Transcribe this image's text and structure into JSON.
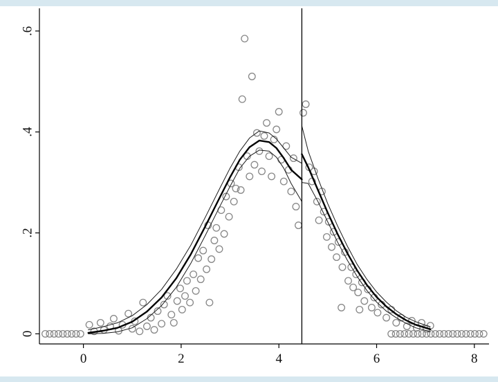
{
  "figure": {
    "background": "#ffffff",
    "plot_background": "#ffffff",
    "edge_strip_color": "#d7e8f0",
    "axis_color": "#000000",
    "scatter_color": "#878787",
    "fit_line_color": "#000000",
    "ci_line_color": "#1a1a1a",
    "cutoff_line_color": "#000000"
  },
  "chart_data": {
    "type": "scatter",
    "title": "",
    "xlabel": "",
    "ylabel": "",
    "grid": false,
    "legend": null,
    "xlim": [
      -0.9,
      8.3
    ],
    "ylim": [
      -0.02,
      0.645
    ],
    "x_ticks": [
      0,
      2,
      4,
      6,
      8
    ],
    "x_tick_labels": [
      "0",
      "2",
      "4",
      "6",
      "8"
    ],
    "y_ticks": [
      0,
      0.2,
      0.4,
      0.6
    ],
    "y_tick_labels": [
      "0",
      ".2",
      ".4",
      ".6"
    ],
    "cutoff_x": 4.47,
    "series": [
      {
        "name": "density-bin-scatter",
        "type": "scatter",
        "role": "points",
        "points": [
          [
            -0.78,
            0
          ],
          [
            -0.69,
            0
          ],
          [
            -0.6,
            0
          ],
          [
            -0.51,
            0
          ],
          [
            -0.42,
            0
          ],
          [
            -0.33,
            0
          ],
          [
            -0.24,
            0
          ],
          [
            -0.15,
            0
          ],
          [
            -0.06,
            0
          ],
          [
            0.12,
            0.018
          ],
          [
            0.22,
            0.005
          ],
          [
            0.35,
            0.022
          ],
          [
            0.42,
            0.008
          ],
          [
            0.55,
            0.015
          ],
          [
            0.62,
            0.03
          ],
          [
            0.72,
            0.006
          ],
          [
            0.8,
            0.018
          ],
          [
            0.92,
            0.04
          ],
          [
            1.0,
            0.01
          ],
          [
            1.05,
            0.025
          ],
          [
            1.15,
            0.005
          ],
          [
            1.22,
            0.062
          ],
          [
            1.3,
            0.015
          ],
          [
            1.38,
            0.032
          ],
          [
            1.45,
            0.008
          ],
          [
            1.52,
            0.045
          ],
          [
            1.6,
            0.02
          ],
          [
            1.65,
            0.058
          ],
          [
            1.72,
            0.075
          ],
          [
            1.8,
            0.038
          ],
          [
            1.85,
            0.022
          ],
          [
            1.92,
            0.065
          ],
          [
            1.98,
            0.09
          ],
          [
            2.02,
            0.048
          ],
          [
            2.08,
            0.075
          ],
          [
            2.12,
            0.105
          ],
          [
            2.18,
            0.062
          ],
          [
            2.25,
            0.118
          ],
          [
            2.3,
            0.085
          ],
          [
            2.35,
            0.15
          ],
          [
            2.4,
            0.108
          ],
          [
            2.45,
            0.165
          ],
          [
            2.52,
            0.128
          ],
          [
            2.55,
            0.215
          ],
          [
            2.58,
            0.062
          ],
          [
            2.62,
            0.148
          ],
          [
            2.68,
            0.185
          ],
          [
            2.72,
            0.21
          ],
          [
            2.78,
            0.168
          ],
          [
            2.82,
            0.245
          ],
          [
            2.88,
            0.198
          ],
          [
            2.92,
            0.272
          ],
          [
            2.98,
            0.232
          ],
          [
            3.02,
            0.298
          ],
          [
            3.08,
            0.262
          ],
          [
            3.12,
            0.288
          ],
          [
            3.18,
            0.33
          ],
          [
            3.22,
            0.285
          ],
          [
            3.25,
            0.465
          ],
          [
            3.3,
            0.585
          ],
          [
            3.35,
            0.352
          ],
          [
            3.4,
            0.312
          ],
          [
            3.45,
            0.51
          ],
          [
            3.5,
            0.335
          ],
          [
            3.55,
            0.398
          ],
          [
            3.6,
            0.362
          ],
          [
            3.65,
            0.322
          ],
          [
            3.7,
            0.392
          ],
          [
            3.75,
            0.418
          ],
          [
            3.8,
            0.352
          ],
          [
            3.85,
            0.312
          ],
          [
            3.9,
            0.385
          ],
          [
            3.95,
            0.405
          ],
          [
            4.0,
            0.44
          ],
          [
            4.05,
            0.345
          ],
          [
            4.1,
            0.302
          ],
          [
            4.15,
            0.372
          ],
          [
            4.2,
            0.325
          ],
          [
            4.25,
            0.282
          ],
          [
            4.3,
            0.348
          ],
          [
            4.35,
            0.252
          ],
          [
            4.4,
            0.215
          ],
          [
            4.5,
            0.438
          ],
          [
            4.55,
            0.455
          ],
          [
            4.62,
            0.33
          ],
          [
            4.68,
            0.302
          ],
          [
            4.72,
            0.322
          ],
          [
            4.78,
            0.262
          ],
          [
            4.82,
            0.225
          ],
          [
            4.88,
            0.282
          ],
          [
            4.92,
            0.242
          ],
          [
            4.98,
            0.192
          ],
          [
            5.02,
            0.222
          ],
          [
            5.08,
            0.172
          ],
          [
            5.12,
            0.202
          ],
          [
            5.18,
            0.152
          ],
          [
            5.22,
            0.182
          ],
          [
            5.28,
            0.052
          ],
          [
            5.3,
            0.132
          ],
          [
            5.35,
            0.162
          ],
          [
            5.42,
            0.105
          ],
          [
            5.48,
            0.132
          ],
          [
            5.52,
            0.092
          ],
          [
            5.58,
            0.118
          ],
          [
            5.62,
            0.082
          ],
          [
            5.65,
            0.048
          ],
          [
            5.7,
            0.102
          ],
          [
            5.75,
            0.065
          ],
          [
            5.82,
            0.088
          ],
          [
            5.9,
            0.052
          ],
          [
            5.95,
            0.072
          ],
          [
            6.02,
            0.042
          ],
          [
            6.1,
            0.058
          ],
          [
            6.2,
            0.032
          ],
          [
            6.3,
            0.048
          ],
          [
            6.4,
            0.022
          ],
          [
            6.5,
            0.032
          ],
          [
            6.62,
            0.015
          ],
          [
            6.72,
            0.026
          ],
          [
            6.82,
            0.012
          ],
          [
            6.92,
            0.022
          ],
          [
            7.02,
            0.01
          ],
          [
            7.1,
            0.016
          ],
          [
            6.3,
            0
          ],
          [
            6.39,
            0
          ],
          [
            6.48,
            0
          ],
          [
            6.57,
            0
          ],
          [
            6.66,
            0
          ],
          [
            6.75,
            0
          ],
          [
            6.84,
            0
          ],
          [
            6.93,
            0
          ],
          [
            7.02,
            0
          ],
          [
            7.11,
            0
          ],
          [
            7.2,
            0
          ],
          [
            7.29,
            0
          ],
          [
            7.38,
            0
          ],
          [
            7.47,
            0
          ],
          [
            7.56,
            0
          ],
          [
            7.65,
            0
          ],
          [
            7.74,
            0
          ],
          [
            7.83,
            0
          ],
          [
            7.92,
            0
          ],
          [
            8.01,
            0
          ],
          [
            8.1,
            0
          ],
          [
            8.19,
            0
          ]
        ]
      },
      {
        "name": "ci-upper-left",
        "type": "line",
        "role": "ci",
        "points": [
          [
            0.1,
            0.008
          ],
          [
            0.4,
            0.014
          ],
          [
            0.7,
            0.022
          ],
          [
            1.0,
            0.036
          ],
          [
            1.3,
            0.058
          ],
          [
            1.6,
            0.088
          ],
          [
            1.9,
            0.128
          ],
          [
            2.2,
            0.176
          ],
          [
            2.5,
            0.232
          ],
          [
            2.8,
            0.29
          ],
          [
            3.0,
            0.328
          ],
          [
            3.2,
            0.362
          ],
          [
            3.4,
            0.388
          ],
          [
            3.6,
            0.402
          ],
          [
            3.8,
            0.398
          ],
          [
            3.95,
            0.386
          ],
          [
            4.1,
            0.368
          ],
          [
            4.25,
            0.35
          ],
          [
            4.47,
            0.338
          ]
        ]
      },
      {
        "name": "ci-lower-left",
        "type": "line",
        "role": "ci",
        "points": [
          [
            0.1,
            0.0
          ],
          [
            0.4,
            0.001
          ],
          [
            0.7,
            0.004
          ],
          [
            1.0,
            0.012
          ],
          [
            1.3,
            0.03
          ],
          [
            1.6,
            0.056
          ],
          [
            1.9,
            0.092
          ],
          [
            2.2,
            0.14
          ],
          [
            2.5,
            0.196
          ],
          [
            2.8,
            0.254
          ],
          [
            3.0,
            0.292
          ],
          [
            3.2,
            0.328
          ],
          [
            3.4,
            0.352
          ],
          [
            3.6,
            0.364
          ],
          [
            3.8,
            0.362
          ],
          [
            3.95,
            0.35
          ],
          [
            4.1,
            0.328
          ],
          [
            4.25,
            0.298
          ],
          [
            4.47,
            0.262
          ]
        ]
      },
      {
        "name": "ci-upper-right",
        "type": "line",
        "role": "ci",
        "points": [
          [
            4.47,
            0.412
          ],
          [
            4.6,
            0.362
          ],
          [
            4.8,
            0.308
          ],
          [
            5.0,
            0.258
          ],
          [
            5.2,
            0.214
          ],
          [
            5.4,
            0.174
          ],
          [
            5.6,
            0.138
          ],
          [
            5.8,
            0.108
          ],
          [
            6.0,
            0.083
          ],
          [
            6.2,
            0.063
          ],
          [
            6.4,
            0.046
          ],
          [
            6.6,
            0.033
          ],
          [
            6.8,
            0.024
          ],
          [
            7.0,
            0.017
          ],
          [
            7.1,
            0.014
          ]
        ]
      },
      {
        "name": "ci-lower-right",
        "type": "line",
        "role": "ci",
        "points": [
          [
            4.47,
            0.3
          ],
          [
            4.6,
            0.298
          ],
          [
            4.8,
            0.262
          ],
          [
            5.0,
            0.222
          ],
          [
            5.2,
            0.182
          ],
          [
            5.4,
            0.146
          ],
          [
            5.6,
            0.114
          ],
          [
            5.8,
            0.086
          ],
          [
            6.0,
            0.063
          ],
          [
            6.2,
            0.045
          ],
          [
            6.4,
            0.032
          ],
          [
            6.6,
            0.021
          ],
          [
            6.8,
            0.012
          ],
          [
            7.0,
            0.007
          ],
          [
            7.1,
            0.004
          ]
        ]
      },
      {
        "name": "density-fit-left",
        "type": "line",
        "role": "fit",
        "points": [
          [
            0.1,
            0.002
          ],
          [
            0.4,
            0.006
          ],
          [
            0.7,
            0.012
          ],
          [
            1.0,
            0.024
          ],
          [
            1.3,
            0.044
          ],
          [
            1.6,
            0.072
          ],
          [
            1.9,
            0.11
          ],
          [
            2.2,
            0.158
          ],
          [
            2.5,
            0.214
          ],
          [
            2.8,
            0.272
          ],
          [
            3.0,
            0.31
          ],
          [
            3.2,
            0.345
          ],
          [
            3.4,
            0.37
          ],
          [
            3.6,
            0.383
          ],
          [
            3.8,
            0.38
          ],
          [
            3.95,
            0.368
          ],
          [
            4.1,
            0.348
          ],
          [
            4.25,
            0.325
          ],
          [
            4.47,
            0.306
          ]
        ]
      },
      {
        "name": "density-fit-right",
        "type": "line",
        "role": "fit",
        "points": [
          [
            4.47,
            0.356
          ],
          [
            4.6,
            0.33
          ],
          [
            4.8,
            0.285
          ],
          [
            5.0,
            0.24
          ],
          [
            5.2,
            0.198
          ],
          [
            5.4,
            0.16
          ],
          [
            5.6,
            0.126
          ],
          [
            5.8,
            0.097
          ],
          [
            6.0,
            0.073
          ],
          [
            6.2,
            0.054
          ],
          [
            6.4,
            0.039
          ],
          [
            6.6,
            0.027
          ],
          [
            6.8,
            0.018
          ],
          [
            7.0,
            0.012
          ],
          [
            7.1,
            0.009
          ]
        ]
      }
    ]
  }
}
